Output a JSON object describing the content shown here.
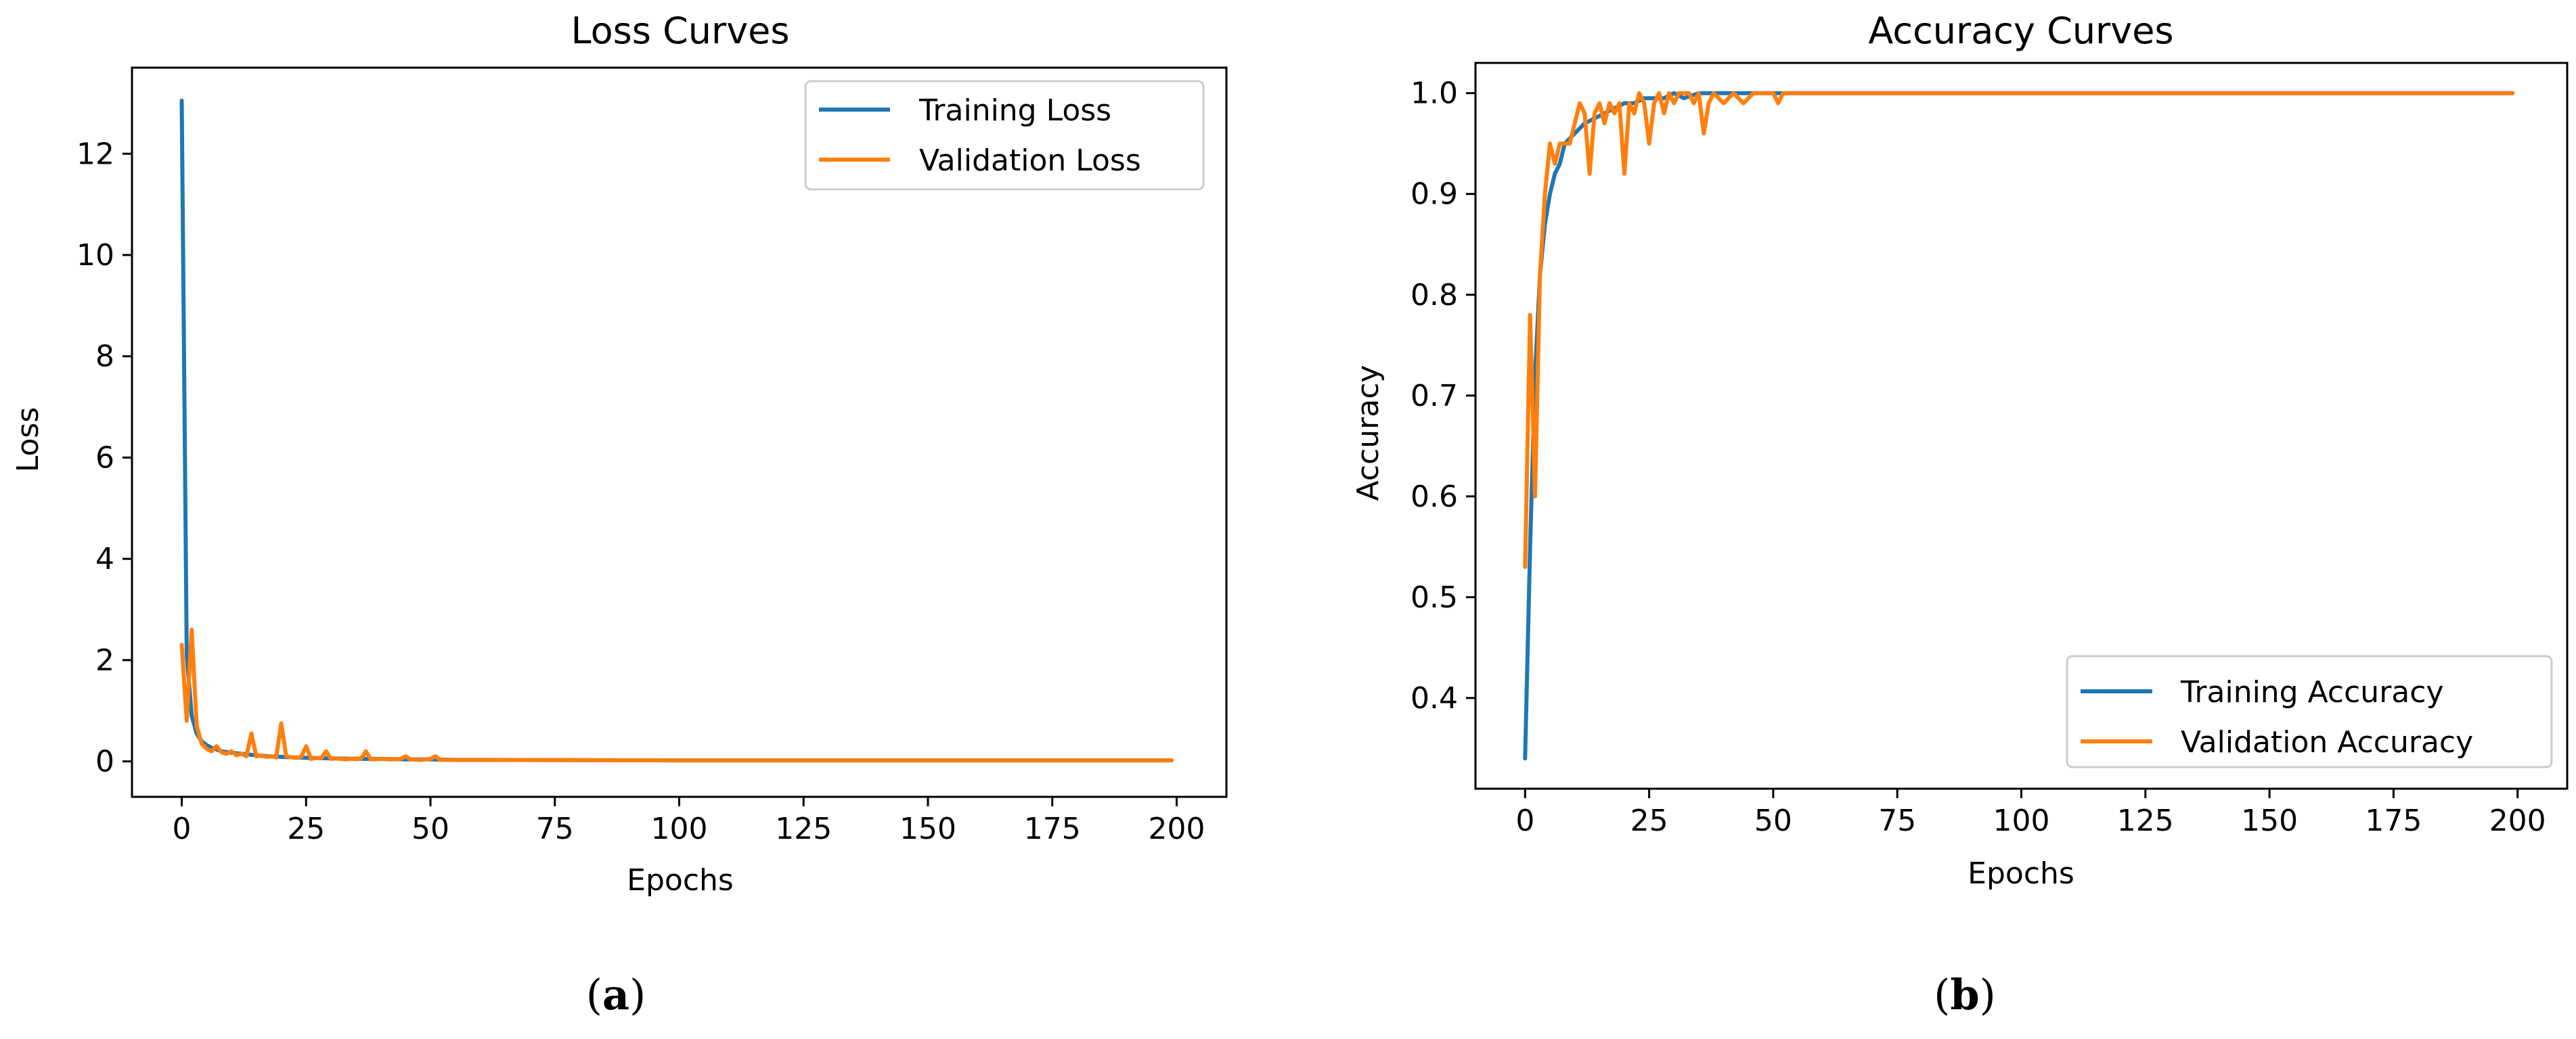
{
  "chart_data": [
    {
      "type": "line",
      "panel_label": "a",
      "title": "Loss Curves",
      "xlabel": "Epochs",
      "ylabel": "Loss",
      "xlim": [
        -10,
        210
      ],
      "ylim": [
        -0.7,
        13.7
      ],
      "xticks": [
        0,
        25,
        50,
        75,
        100,
        125,
        150,
        175,
        200
      ],
      "yticks": [
        0,
        2,
        4,
        6,
        8,
        10,
        12
      ],
      "legend_position": "top-right",
      "series": [
        {
          "name": "Training Loss",
          "color": "#1f77b4",
          "x": [
            0,
            1,
            2,
            3,
            4,
            5,
            6,
            8,
            10,
            12,
            14,
            16,
            18,
            20,
            25,
            30,
            35,
            40,
            45,
            50,
            55,
            60,
            100,
            150,
            199
          ],
          "y": [
            13.05,
            2.1,
            0.9,
            0.55,
            0.4,
            0.32,
            0.27,
            0.2,
            0.17,
            0.15,
            0.13,
            0.11,
            0.1,
            0.09,
            0.07,
            0.06,
            0.05,
            0.05,
            0.04,
            0.04,
            0.03,
            0.03,
            0.02,
            0.02,
            0.02
          ]
        },
        {
          "name": "Validation Loss",
          "color": "#ff7f0e",
          "x": [
            0,
            1,
            2,
            3,
            4,
            5,
            6,
            7,
            8,
            9,
            10,
            11,
            12,
            13,
            14,
            15,
            16,
            17,
            18,
            19,
            20,
            21,
            22,
            23,
            24,
            25,
            26,
            27,
            28,
            29,
            30,
            31,
            32,
            33,
            34,
            35,
            36,
            37,
            38,
            40,
            42,
            44,
            45,
            46,
            48,
            50,
            51,
            52,
            53,
            55,
            60,
            100,
            150,
            199
          ],
          "y": [
            2.3,
            0.8,
            2.6,
            0.7,
            0.35,
            0.25,
            0.2,
            0.3,
            0.18,
            0.15,
            0.2,
            0.12,
            0.15,
            0.1,
            0.55,
            0.1,
            0.12,
            0.09,
            0.1,
            0.08,
            0.75,
            0.1,
            0.08,
            0.07,
            0.09,
            0.3,
            0.05,
            0.07,
            0.06,
            0.2,
            0.05,
            0.06,
            0.05,
            0.04,
            0.05,
            0.06,
            0.05,
            0.2,
            0.04,
            0.05,
            0.04,
            0.05,
            0.1,
            0.04,
            0.03,
            0.05,
            0.1,
            0.03,
            0.03,
            0.03,
            0.03,
            0.02,
            0.02,
            0.02
          ]
        }
      ]
    },
    {
      "type": "line",
      "panel_label": "b",
      "title": "Accuracy Curves",
      "xlabel": "Epochs",
      "ylabel": "Accuracy",
      "xlim": [
        -10,
        210
      ],
      "ylim": [
        0.31,
        1.03
      ],
      "xticks": [
        0,
        25,
        50,
        75,
        100,
        125,
        150,
        175,
        200
      ],
      "yticks": [
        0.4,
        0.5,
        0.6,
        0.7,
        0.8,
        0.9,
        1.0
      ],
      "ytick_labels": [
        "0.4",
        "0.5",
        "0.6",
        "0.7",
        "0.8",
        "0.9",
        "1.0"
      ],
      "legend_position": "bottom-right",
      "series": [
        {
          "name": "Training Accuracy",
          "color": "#1f77b4",
          "x": [
            0,
            1,
            2,
            3,
            4,
            5,
            6,
            7,
            8,
            10,
            12,
            14,
            16,
            18,
            20,
            22,
            24,
            26,
            28,
            30,
            32,
            35,
            38,
            40,
            45,
            50,
            55,
            60,
            100,
            150,
            199
          ],
          "y": [
            0.34,
            0.55,
            0.72,
            0.82,
            0.87,
            0.9,
            0.92,
            0.93,
            0.95,
            0.96,
            0.97,
            0.975,
            0.98,
            0.985,
            0.99,
            0.99,
            0.995,
            0.995,
            0.995,
            1.0,
            0.995,
            1.0,
            1.0,
            1.0,
            1.0,
            1.0,
            1.0,
            1.0,
            1.0,
            1.0,
            1.0
          ]
        },
        {
          "name": "Validation Accuracy",
          "color": "#ff7f0e",
          "x": [
            0,
            1,
            2,
            3,
            4,
            5,
            6,
            7,
            8,
            9,
            10,
            11,
            12,
            13,
            14,
            15,
            16,
            17,
            18,
            19,
            20,
            21,
            22,
            23,
            24,
            25,
            26,
            27,
            28,
            29,
            30,
            31,
            32,
            33,
            34,
            35,
            36,
            37,
            38,
            40,
            42,
            44,
            46,
            48,
            50,
            51,
            52,
            53,
            55,
            60,
            100,
            150,
            199
          ],
          "y": [
            0.53,
            0.78,
            0.6,
            0.82,
            0.9,
            0.95,
            0.93,
            0.95,
            0.95,
            0.95,
            0.97,
            0.99,
            0.98,
            0.92,
            0.98,
            0.99,
            0.97,
            0.99,
            0.98,
            0.99,
            0.92,
            0.99,
            0.98,
            1.0,
            0.99,
            0.95,
            0.99,
            1.0,
            0.98,
            1.0,
            0.99,
            1.0,
            1.0,
            1.0,
            0.99,
            1.0,
            0.96,
            0.99,
            1.0,
            0.99,
            1.0,
            0.99,
            1.0,
            1.0,
            1.0,
            0.99,
            1.0,
            1.0,
            1.0,
            1.0,
            1.0,
            1.0,
            1.0
          ]
        }
      ]
    }
  ]
}
